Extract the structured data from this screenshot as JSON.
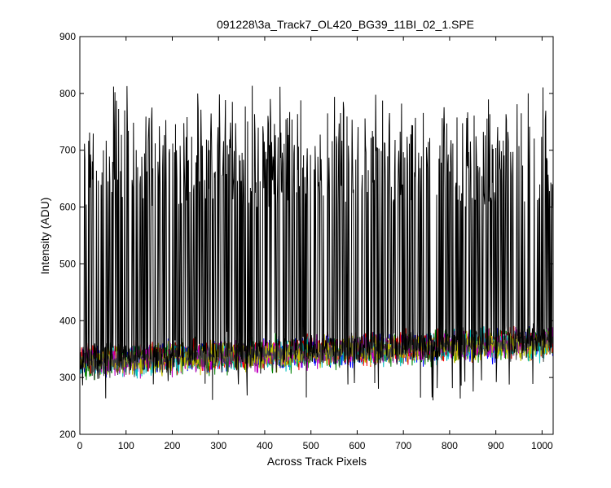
{
  "window": {
    "background": "#ffffff"
  },
  "chart_data": {
    "type": "line",
    "title": "091228\\3a_Track7_OL420_BG39_11BI_02_1.SPE",
    "xlabel": "Across Track Pixels",
    "ylabel": "Intensity (ADU)",
    "xlim": [
      0,
      1024
    ],
    "ylim": [
      200,
      900
    ],
    "x_ticks": [
      0,
      100,
      200,
      300,
      400,
      500,
      600,
      700,
      800,
      900,
      1000
    ],
    "y_ticks": [
      200,
      300,
      400,
      500,
      600,
      700,
      800,
      900
    ],
    "grid": false,
    "legend": "none",
    "series": [
      {
        "color": "#0000ff",
        "profile": "noise",
        "base_start": 328,
        "base_end": 362,
        "amplitude": 38
      },
      {
        "color": "#008000",
        "profile": "noise",
        "base_start": 327,
        "base_end": 361,
        "amplitude": 38
      },
      {
        "color": "#ff0000",
        "profile": "noise",
        "base_start": 329,
        "base_end": 363,
        "amplitude": 38
      },
      {
        "color": "#00bfbf",
        "profile": "noise",
        "base_start": 328,
        "base_end": 362,
        "amplitude": 38
      },
      {
        "color": "#bf00bf",
        "profile": "noise",
        "base_start": 327,
        "base_end": 361,
        "amplitude": 36
      },
      {
        "color": "#bfbf00",
        "profile": "noise",
        "base_start": 328,
        "base_end": 362,
        "amplitude": 36
      },
      {
        "color": "#404040",
        "profile": "noise",
        "base_start": 329,
        "base_end": 362,
        "amplitude": 36
      },
      {
        "color": "#000000",
        "profile": "spiky",
        "base_start": 330,
        "base_end": 365,
        "amplitude": 40,
        "peak_min": 600,
        "peak_max": 825,
        "dip_min": 258,
        "dip_max": 300
      }
    ]
  }
}
